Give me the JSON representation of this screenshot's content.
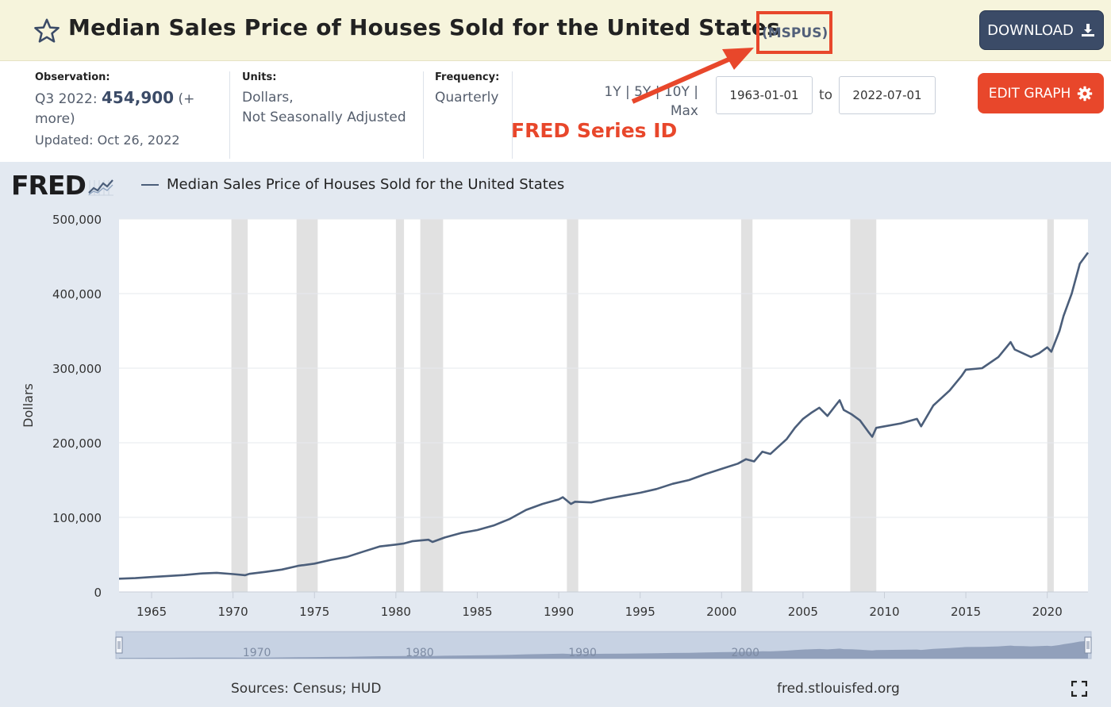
{
  "header": {
    "title": "Median Sales Price of Houses Sold for the United States",
    "series_id": "(MSPUS)",
    "download_label": "DOWNLOAD"
  },
  "meta": {
    "observation_label": "Observation:",
    "observation_period": "Q3 2022:",
    "observation_value": "454,900",
    "observation_more_a": "(+",
    "observation_more_b": "more)",
    "updated": "Updated: Oct 26, 2022",
    "units_label": "Units:",
    "units_line1": "Dollars,",
    "units_line2": "Not Seasonally Adjusted",
    "frequency_label": "Frequency:",
    "frequency_value": "Quarterly",
    "range_links_line1": "1Y | 5Y | 10Y |",
    "range_links_line2": "Max",
    "start_date": "1963-01-01",
    "to_label": "to",
    "end_date": "2022-07-01",
    "edit_label": "EDIT GRAPH"
  },
  "annotation": {
    "label": "FRED Series ID",
    "color": "#e8472b"
  },
  "logo": {
    "text": "FRED"
  },
  "footer": {
    "sources": "Sources: Census; HUD",
    "url": "fred.stlouisfed.org"
  },
  "colors": {
    "line": "#4b5e7a",
    "recession": "#e1e1e1",
    "panel": "#e3e9f1",
    "accent": "#e8472b",
    "button_dark": "#3b4b67"
  },
  "chart_data": {
    "type": "line",
    "title": "Median Sales Price of Houses Sold for the United States",
    "ylabel": "Dollars",
    "xlabel": "",
    "xlim": [
      1963.0,
      2022.5
    ],
    "ylim": [
      0,
      500000
    ],
    "yticks": [
      0,
      100000,
      200000,
      300000,
      400000,
      500000
    ],
    "ytick_labels": [
      "0",
      "100,000",
      "200,000",
      "300,000",
      "400,000",
      "500,000"
    ],
    "xticks": [
      1965,
      1970,
      1975,
      1980,
      1985,
      1990,
      1995,
      2000,
      2005,
      2010,
      2015,
      2020
    ],
    "grid": "horizontal",
    "legend": "top-left",
    "recessions": [
      [
        1969.9,
        1970.9
      ],
      [
        1973.9,
        1975.2
      ],
      [
        1980.0,
        1980.5
      ],
      [
        1981.5,
        1982.9
      ],
      [
        1990.5,
        1991.2
      ],
      [
        2001.2,
        2001.9
      ],
      [
        2007.9,
        2009.5
      ],
      [
        2020.0,
        2020.4
      ]
    ],
    "series": [
      {
        "name": "Median Sales Price of Houses Sold for the United States",
        "points": [
          [
            1963.0,
            17800
          ],
          [
            1964.0,
            18500
          ],
          [
            1965.0,
            20000
          ],
          [
            1966.0,
            21400
          ],
          [
            1967.0,
            22700
          ],
          [
            1968.0,
            24700
          ],
          [
            1969.0,
            25600
          ],
          [
            1970.0,
            23900
          ],
          [
            1970.75,
            22500
          ],
          [
            1971.0,
            24300
          ],
          [
            1972.0,
            26900
          ],
          [
            1973.0,
            30000
          ],
          [
            1974.0,
            35000
          ],
          [
            1975.0,
            38000
          ],
          [
            1976.0,
            43000
          ],
          [
            1977.0,
            47000
          ],
          [
            1978.0,
            54000
          ],
          [
            1979.0,
            61000
          ],
          [
            1980.0,
            63500
          ],
          [
            1980.5,
            65000
          ],
          [
            1981.0,
            68000
          ],
          [
            1982.0,
            70000
          ],
          [
            1982.25,
            67000
          ],
          [
            1983.0,
            73000
          ],
          [
            1984.0,
            79000
          ],
          [
            1985.0,
            83000
          ],
          [
            1986.0,
            89000
          ],
          [
            1987.0,
            98000
          ],
          [
            1988.0,
            110000
          ],
          [
            1989.0,
            118000
          ],
          [
            1990.0,
            124000
          ],
          [
            1990.25,
            127000
          ],
          [
            1990.75,
            118000
          ],
          [
            1991.0,
            121000
          ],
          [
            1992.0,
            120000
          ],
          [
            1993.0,
            125000
          ],
          [
            1994.0,
            129000
          ],
          [
            1995.0,
            133000
          ],
          [
            1996.0,
            138000
          ],
          [
            1997.0,
            145000
          ],
          [
            1998.0,
            150000
          ],
          [
            1999.0,
            158000
          ],
          [
            2000.0,
            165000
          ],
          [
            2001.0,
            172000
          ],
          [
            2001.5,
            178000
          ],
          [
            2002.0,
            175000
          ],
          [
            2002.5,
            188000
          ],
          [
            2003.0,
            185000
          ],
          [
            2004.0,
            205000
          ],
          [
            2004.5,
            220000
          ],
          [
            2005.0,
            232000
          ],
          [
            2005.5,
            240000
          ],
          [
            2006.0,
            247000
          ],
          [
            2006.5,
            236000
          ],
          [
            2007.0,
            250000
          ],
          [
            2007.25,
            257000
          ],
          [
            2007.5,
            244000
          ],
          [
            2008.0,
            238000
          ],
          [
            2008.5,
            230000
          ],
          [
            2009.0,
            215000
          ],
          [
            2009.25,
            208000
          ],
          [
            2009.5,
            220000
          ],
          [
            2010.0,
            222000
          ],
          [
            2011.0,
            226000
          ],
          [
            2012.0,
            232000
          ],
          [
            2012.25,
            222000
          ],
          [
            2013.0,
            250000
          ],
          [
            2014.0,
            270000
          ],
          [
            2014.75,
            290000
          ],
          [
            2015.0,
            298000
          ],
          [
            2016.0,
            300000
          ],
          [
            2017.0,
            315000
          ],
          [
            2017.75,
            335000
          ],
          [
            2018.0,
            325000
          ],
          [
            2018.5,
            320000
          ],
          [
            2019.0,
            315000
          ],
          [
            2019.5,
            320000
          ],
          [
            2020.0,
            328000
          ],
          [
            2020.25,
            322000
          ],
          [
            2020.75,
            350000
          ],
          [
            2021.0,
            370000
          ],
          [
            2021.5,
            400000
          ],
          [
            2022.0,
            440000
          ],
          [
            2022.5,
            454900
          ]
        ]
      }
    ],
    "navigator_labels": [
      "1970",
      "1980",
      "1990",
      "2000"
    ]
  }
}
